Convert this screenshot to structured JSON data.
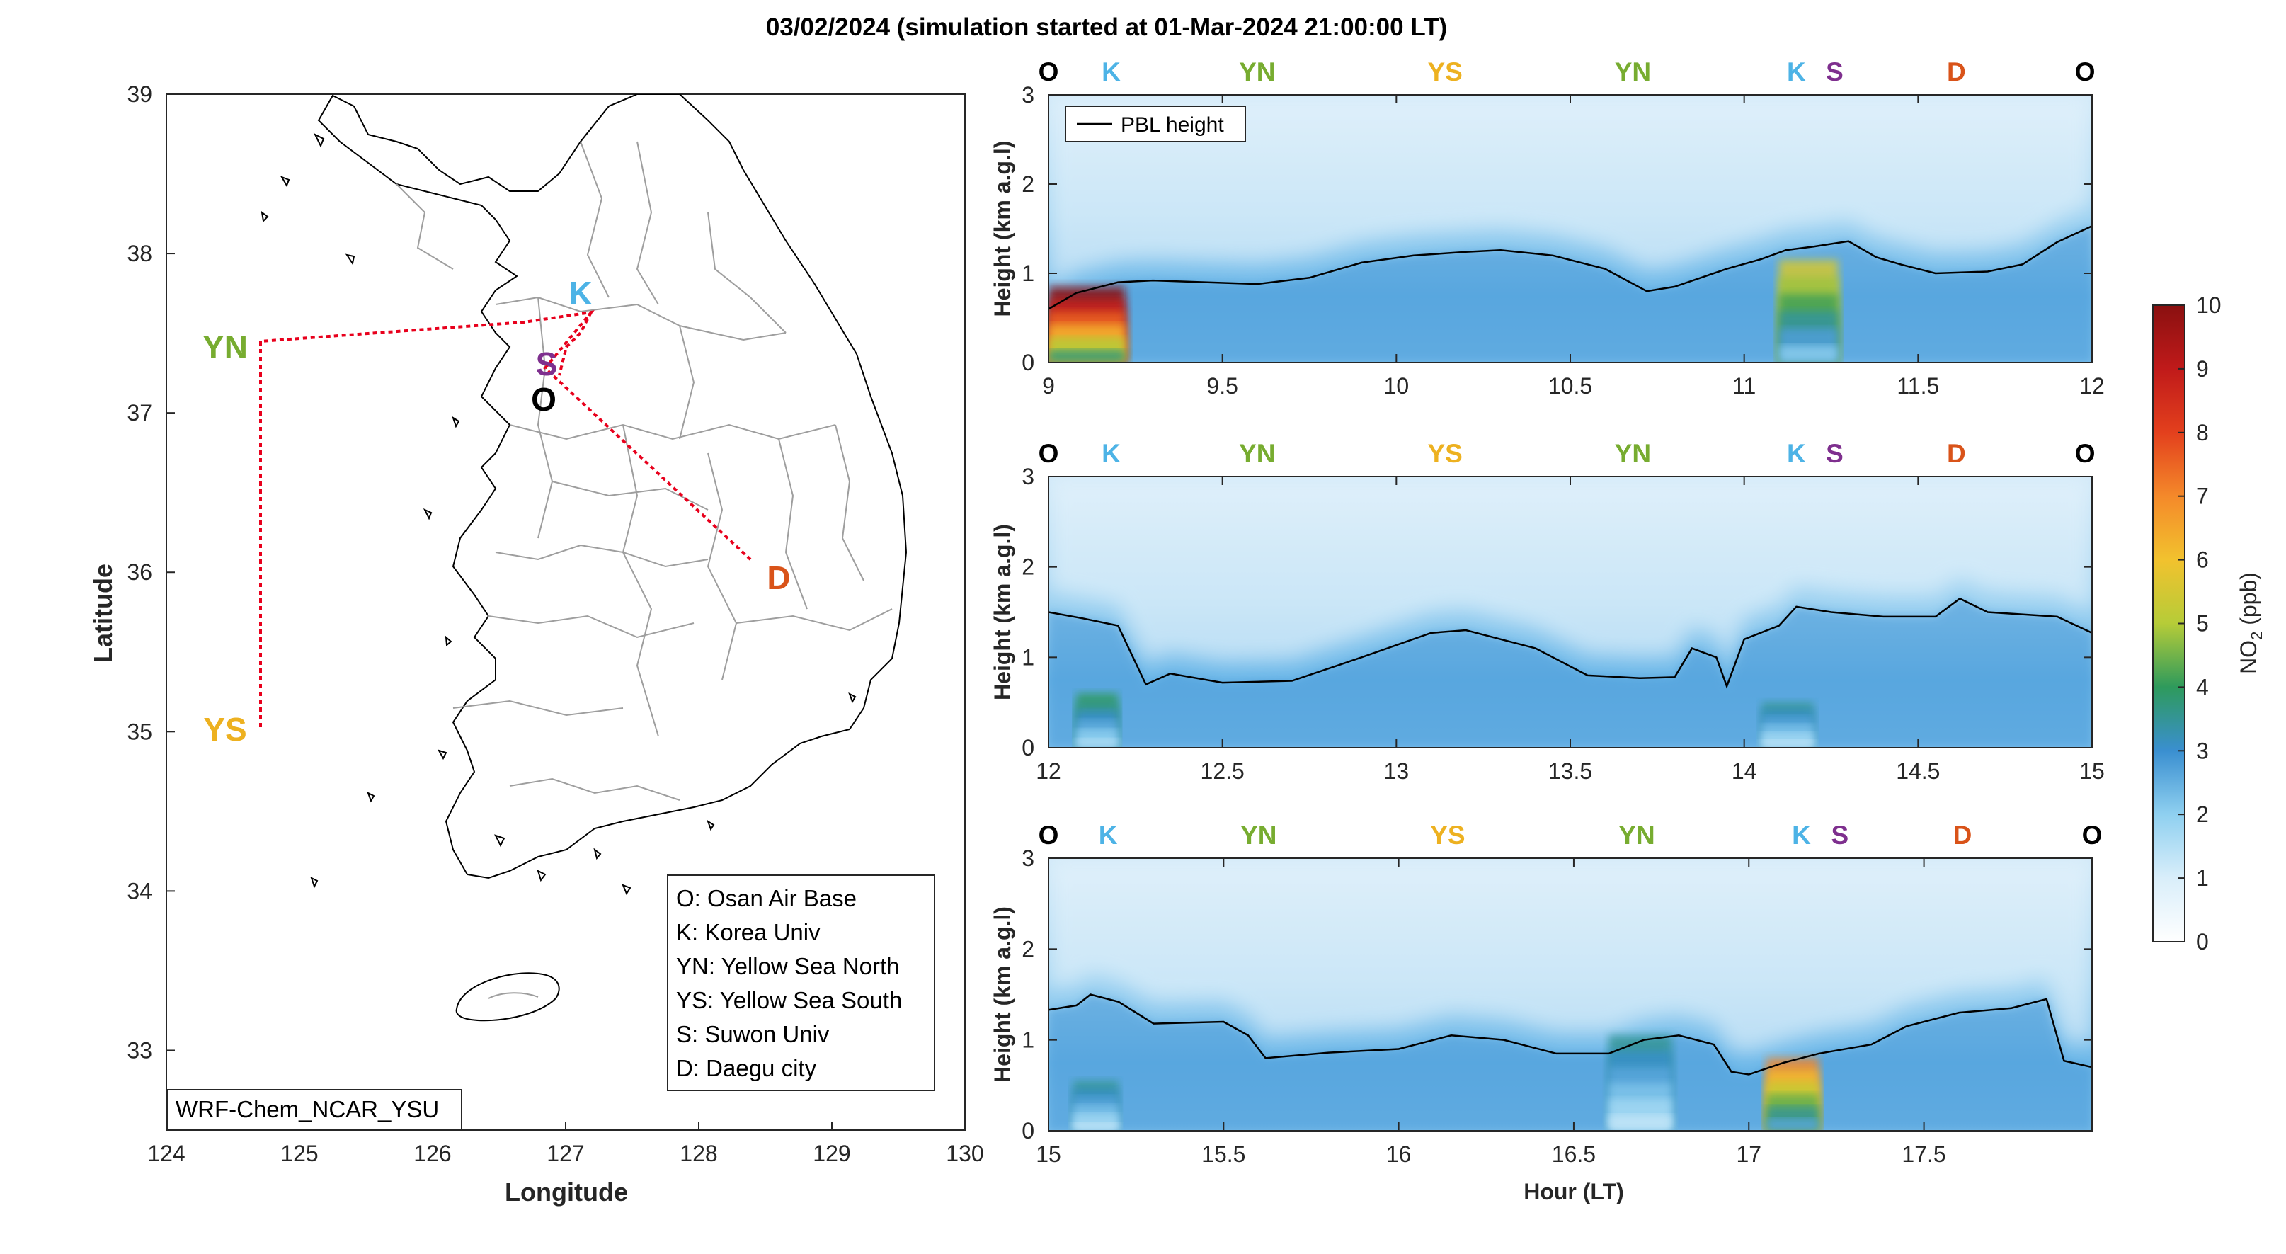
{
  "figure_title": "03/02/2024 (simulation started at 01-Mar-2024 21:00:00 LT)",
  "colors": {
    "O": "#000000",
    "K": "#4db3e6",
    "YN": "#77ac30",
    "YS": "#edb120",
    "S": "#7e2f8e",
    "D": "#d95319",
    "route": "#e8001c",
    "pbl": "#000000"
  },
  "map": {
    "xlabel": "Longitude",
    "ylabel": "Latitude",
    "xticks": [
      "124",
      "125",
      "126",
      "127",
      "128",
      "129",
      "130"
    ],
    "yticks": [
      "33",
      "34",
      "35",
      "36",
      "37",
      "38",
      "39"
    ],
    "xlim": [
      124,
      130
    ],
    "ylim": [
      32.5,
      39
    ],
    "model_label": "WRF-Chem_NCAR_YSU",
    "legend": [
      "O: Osan Air Base",
      "K: Korea Univ",
      "YN: Yellow Sea North",
      "YS: Yellow Sea South",
      "S: Suwon Univ",
      "D: Daegu city"
    ],
    "sites": [
      {
        "code": "O",
        "lon": 127.03,
        "lat": 37.09
      },
      {
        "code": "K",
        "lon": 127.03,
        "lat": 37.59
      },
      {
        "code": "S",
        "lon": 126.97,
        "lat": 37.28
      },
      {
        "code": "D",
        "lon": 128.55,
        "lat": 35.87
      },
      {
        "code": "YN",
        "lon": 124.7,
        "lat": 37.45
      },
      {
        "code": "YS",
        "lon": 124.7,
        "lat": 35.05
      }
    ]
  },
  "chart_data": {
    "type": "heatmap",
    "description_units": "NO2 curtain along flight track; x = hour (LT), y = height (km a.g.l)",
    "ylabel": "Height (km a.g.l)",
    "xlabel": "Hour (LT)",
    "colorbar": {
      "label": "NO2 (ppb)",
      "min": 0,
      "max": 10,
      "ticks": [
        "0",
        "1",
        "2",
        "3",
        "4",
        "5",
        "6",
        "7",
        "8",
        "9",
        "10"
      ]
    },
    "legend_entry": "PBL height",
    "panels": [
      {
        "xlim": [
          9,
          12
        ],
        "ylim": [
          0,
          3
        ],
        "xticks": [
          "9",
          "9.5",
          "10",
          "10.5",
          "11",
          "11.5",
          "12"
        ],
        "yticks": [
          "0",
          "1",
          "2",
          "3"
        ],
        "site_labels": [
          {
            "code": "O",
            "hour": 9.0
          },
          {
            "code": "K",
            "hour": 9.18
          },
          {
            "code": "YN",
            "hour": 9.6
          },
          {
            "code": "YS",
            "hour": 10.14
          },
          {
            "code": "YN",
            "hour": 10.68
          },
          {
            "code": "K",
            "hour": 11.15
          },
          {
            "code": "S",
            "hour": 11.26
          },
          {
            "code": "D",
            "hour": 11.61
          },
          {
            "code": "O",
            "hour": 11.98
          }
        ],
        "pbl_height": [
          [
            9.0,
            0.6
          ],
          [
            9.08,
            0.78
          ],
          [
            9.2,
            0.9
          ],
          [
            9.3,
            0.92
          ],
          [
            9.45,
            0.9
          ],
          [
            9.6,
            0.88
          ],
          [
            9.75,
            0.95
          ],
          [
            9.9,
            1.12
          ],
          [
            10.05,
            1.2
          ],
          [
            10.2,
            1.24
          ],
          [
            10.3,
            1.26
          ],
          [
            10.45,
            1.2
          ],
          [
            10.6,
            1.05
          ],
          [
            10.72,
            0.8
          ],
          [
            10.8,
            0.85
          ],
          [
            10.95,
            1.05
          ],
          [
            11.05,
            1.16
          ],
          [
            11.12,
            1.26
          ],
          [
            11.2,
            1.3
          ],
          [
            11.3,
            1.36
          ],
          [
            11.38,
            1.18
          ],
          [
            11.45,
            1.1
          ],
          [
            11.55,
            1.0
          ],
          [
            11.7,
            1.02
          ],
          [
            11.8,
            1.1
          ],
          [
            11.9,
            1.35
          ],
          [
            12.0,
            1.53
          ]
        ],
        "hotspots": [
          {
            "hour_start": 9.0,
            "hour_end": 9.22,
            "top_km": 0.85,
            "peak_ppb": 10
          },
          {
            "hour_start": 11.1,
            "hour_end": 11.27,
            "top_km": 1.15,
            "peak_ppb": 5.5
          }
        ]
      },
      {
        "xlim": [
          12,
          15
        ],
        "ylim": [
          0,
          3
        ],
        "xticks": [
          "12",
          "12.5",
          "13",
          "13.5",
          "14",
          "14.5",
          "15"
        ],
        "yticks": [
          "0",
          "1",
          "2",
          "3"
        ],
        "site_labels": [
          {
            "code": "O",
            "hour": 12.0
          },
          {
            "code": "K",
            "hour": 12.18
          },
          {
            "code": "YN",
            "hour": 12.6
          },
          {
            "code": "YS",
            "hour": 13.14
          },
          {
            "code": "YN",
            "hour": 13.68
          },
          {
            "code": "K",
            "hour": 14.15
          },
          {
            "code": "S",
            "hour": 14.26
          },
          {
            "code": "D",
            "hour": 14.61
          },
          {
            "code": "O",
            "hour": 14.98
          }
        ],
        "pbl_height": [
          [
            12.0,
            1.5
          ],
          [
            12.1,
            1.43
          ],
          [
            12.2,
            1.35
          ],
          [
            12.28,
            0.7
          ],
          [
            12.35,
            0.82
          ],
          [
            12.5,
            0.72
          ],
          [
            12.7,
            0.74
          ],
          [
            12.9,
            1.0
          ],
          [
            13.1,
            1.27
          ],
          [
            13.2,
            1.3
          ],
          [
            13.4,
            1.1
          ],
          [
            13.55,
            0.8
          ],
          [
            13.7,
            0.77
          ],
          [
            13.8,
            0.78
          ],
          [
            13.85,
            1.1
          ],
          [
            13.92,
            1.0
          ],
          [
            13.95,
            0.68
          ],
          [
            14.0,
            1.2
          ],
          [
            14.1,
            1.35
          ],
          [
            14.15,
            1.56
          ],
          [
            14.25,
            1.5
          ],
          [
            14.4,
            1.45
          ],
          [
            14.55,
            1.45
          ],
          [
            14.62,
            1.65
          ],
          [
            14.7,
            1.5
          ],
          [
            14.9,
            1.45
          ],
          [
            15.0,
            1.27
          ]
        ],
        "hotspots": [
          {
            "hour_start": 12.08,
            "hour_end": 12.2,
            "top_km": 0.6,
            "peak_ppb": 4
          },
          {
            "hour_start": 14.05,
            "hour_end": 14.2,
            "top_km": 0.5,
            "peak_ppb": 3.5
          }
        ]
      },
      {
        "xlim": [
          15,
          17.98
        ],
        "ylim": [
          0,
          3
        ],
        "xticks": [
          "15",
          "15.5",
          "16",
          "16.5",
          "17",
          "17.5"
        ],
        "yticks": [
          "0",
          "1",
          "2",
          "3"
        ],
        "site_labels": [
          {
            "code": "O",
            "hour": 15.0
          },
          {
            "code": "K",
            "hour": 15.17
          },
          {
            "code": "YN",
            "hour": 15.6
          },
          {
            "code": "YS",
            "hour": 16.14
          },
          {
            "code": "YN",
            "hour": 16.68
          },
          {
            "code": "K",
            "hour": 17.15
          },
          {
            "code": "S",
            "hour": 17.26
          },
          {
            "code": "D",
            "hour": 17.61
          },
          {
            "code": "O",
            "hour": 17.98
          }
        ],
        "pbl_height": [
          [
            15.0,
            1.33
          ],
          [
            15.08,
            1.38
          ],
          [
            15.12,
            1.5
          ],
          [
            15.2,
            1.42
          ],
          [
            15.3,
            1.18
          ],
          [
            15.5,
            1.2
          ],
          [
            15.57,
            1.05
          ],
          [
            15.62,
            0.8
          ],
          [
            15.8,
            0.86
          ],
          [
            16.0,
            0.9
          ],
          [
            16.15,
            1.05
          ],
          [
            16.3,
            1.0
          ],
          [
            16.45,
            0.85
          ],
          [
            16.6,
            0.85
          ],
          [
            16.7,
            1.0
          ],
          [
            16.8,
            1.05
          ],
          [
            16.9,
            0.95
          ],
          [
            16.95,
            0.65
          ],
          [
            17.0,
            0.62
          ],
          [
            17.1,
            0.75
          ],
          [
            17.2,
            0.85
          ],
          [
            17.35,
            0.95
          ],
          [
            17.45,
            1.15
          ],
          [
            17.6,
            1.3
          ],
          [
            17.75,
            1.35
          ],
          [
            17.85,
            1.45
          ],
          [
            17.9,
            0.77
          ],
          [
            17.98,
            0.7
          ]
        ],
        "hotspots": [
          {
            "hour_start": 15.07,
            "hour_end": 15.2,
            "top_km": 0.55,
            "peak_ppb": 3.5
          },
          {
            "hour_start": 16.6,
            "hour_end": 16.78,
            "top_km": 1.05,
            "peak_ppb": 3.5
          },
          {
            "hour_start": 17.05,
            "hour_end": 17.2,
            "top_km": 0.8,
            "peak_ppb": 7
          }
        ]
      }
    ]
  }
}
